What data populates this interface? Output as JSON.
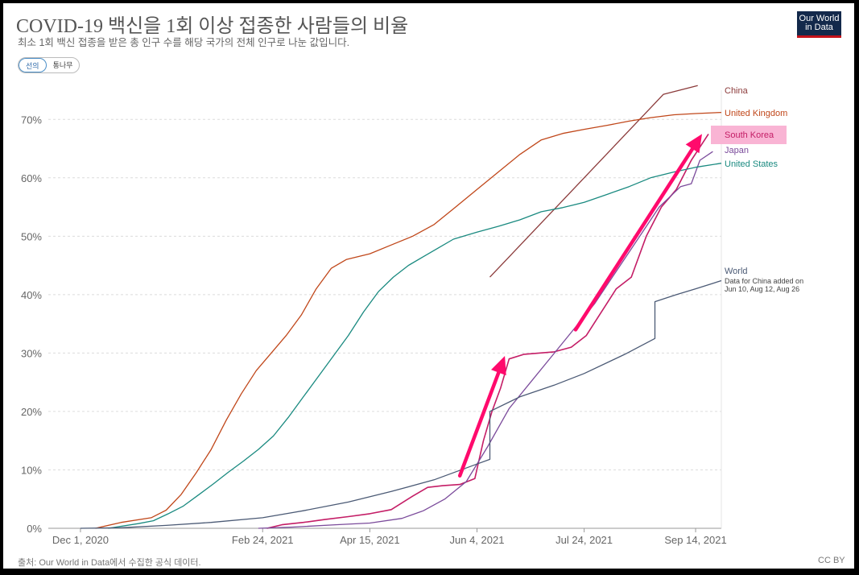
{
  "header": {
    "title": "COVID-19 백신을 1회 이상 접종한 사람들의 비율",
    "subtitle": "최소 1회 백신 접종을 받은 총 인구 수를 해당 국가의 전체 인구로 나눈 값입니다.",
    "logo_line1": "Our World",
    "logo_line2": "in Data"
  },
  "toggle": {
    "options": [
      "선의",
      "통나무"
    ],
    "active": 0
  },
  "footer": {
    "source": "출처: Our World in Data에서 수집한 공식 데이터.",
    "license": "CC BY"
  },
  "colors": {
    "grid": "#dcdcdc",
    "axis": "#999999",
    "arrow": "#ff0a6c",
    "highlight": "#f9b4d4"
  },
  "chart_data": {
    "type": "line",
    "title": "COVID-19 백신을 1회 이상 접종한 사람들의 비율",
    "x_ticks": [
      "Dec 1, 2020",
      "Feb 24, 2021",
      "Apr 15, 2021",
      "Jun 4, 2021",
      "Jul 24, 2021",
      "Sep 14, 2021"
    ],
    "x_range": [
      "2020-11-16",
      "2021-09-26"
    ],
    "y_ticks": [
      "0%",
      "10%",
      "20%",
      "30%",
      "40%",
      "50%",
      "60%",
      "70%"
    ],
    "ylim": [
      0,
      75
    ],
    "grid": true,
    "legend": "right-end-labels",
    "series": [
      {
        "name": "China",
        "color": "#8b3a3a",
        "points": [
          [
            "2021-06-10",
            43
          ],
          [
            "2021-08-30",
            74.3
          ],
          [
            "2021-09-15",
            75.8
          ]
        ]
      },
      {
        "name": "United Kingdom",
        "color": "#c0471a",
        "points": [
          [
            "2020-12-08",
            0
          ],
          [
            "2020-12-20",
            1
          ],
          [
            "2021-01-03",
            1.8
          ],
          [
            "2021-01-10",
            3.1
          ],
          [
            "2021-01-17",
            5.8
          ],
          [
            "2021-01-24",
            9.5
          ],
          [
            "2021-01-31",
            13.5
          ],
          [
            "2021-02-07",
            18.5
          ],
          [
            "2021-02-14",
            23
          ],
          [
            "2021-02-21",
            27
          ],
          [
            "2021-02-28",
            30
          ],
          [
            "2021-03-07",
            33
          ],
          [
            "2021-03-14",
            36.5
          ],
          [
            "2021-03-21",
            41
          ],
          [
            "2021-03-28",
            44.5
          ],
          [
            "2021-04-04",
            46
          ],
          [
            "2021-04-15",
            47
          ],
          [
            "2021-04-25",
            48.5
          ],
          [
            "2021-05-05",
            50
          ],
          [
            "2021-05-15",
            52
          ],
          [
            "2021-05-25",
            55
          ],
          [
            "2021-06-04",
            58
          ],
          [
            "2021-06-14",
            61
          ],
          [
            "2021-06-24",
            64
          ],
          [
            "2021-07-04",
            66.5
          ],
          [
            "2021-07-14",
            67.6
          ],
          [
            "2021-07-24",
            68.3
          ],
          [
            "2021-08-04",
            69
          ],
          [
            "2021-08-14",
            69.7
          ],
          [
            "2021-08-24",
            70.3
          ],
          [
            "2021-09-04",
            70.8
          ],
          [
            "2021-09-14",
            71
          ],
          [
            "2021-09-26",
            71.2
          ]
        ]
      },
      {
        "name": "South Korea",
        "color": "#c41d66",
        "points": [
          [
            "2021-02-26",
            0
          ],
          [
            "2021-03-05",
            0.6
          ],
          [
            "2021-03-15",
            1
          ],
          [
            "2021-03-25",
            1.5
          ],
          [
            "2021-04-05",
            2
          ],
          [
            "2021-04-15",
            2.5
          ],
          [
            "2021-04-25",
            3.2
          ],
          [
            "2021-05-05",
            5.5
          ],
          [
            "2021-05-12",
            7
          ],
          [
            "2021-05-19",
            7.3
          ],
          [
            "2021-05-27",
            7.5
          ],
          [
            "2021-06-03",
            8.5
          ],
          [
            "2021-06-07",
            15
          ],
          [
            "2021-06-11",
            20
          ],
          [
            "2021-06-15",
            24
          ],
          [
            "2021-06-19",
            29
          ],
          [
            "2021-06-26",
            29.8
          ],
          [
            "2021-07-10",
            30.2
          ],
          [
            "2021-07-18",
            31
          ],
          [
            "2021-07-25",
            33
          ],
          [
            "2021-08-01",
            37
          ],
          [
            "2021-08-08",
            41
          ],
          [
            "2021-08-15",
            43
          ],
          [
            "2021-08-22",
            50
          ],
          [
            "2021-08-29",
            55
          ],
          [
            "2021-09-05",
            58
          ],
          [
            "2021-09-12",
            63
          ],
          [
            "2021-09-20",
            67.5
          ]
        ]
      },
      {
        "name": "Japan",
        "color": "#7b4b9b",
        "points": [
          [
            "2021-02-22",
            0
          ],
          [
            "2021-03-10",
            0.2
          ],
          [
            "2021-03-30",
            0.6
          ],
          [
            "2021-04-15",
            0.9
          ],
          [
            "2021-04-30",
            1.7
          ],
          [
            "2021-05-10",
            3
          ],
          [
            "2021-05-20",
            5
          ],
          [
            "2021-05-30",
            8
          ],
          [
            "2021-06-09",
            14
          ],
          [
            "2021-06-19",
            20.5
          ],
          [
            "2021-06-29",
            25
          ],
          [
            "2021-07-09",
            29.5
          ],
          [
            "2021-07-19",
            34
          ],
          [
            "2021-07-29",
            38.5
          ],
          [
            "2021-08-08",
            44
          ],
          [
            "2021-08-18",
            49.5
          ],
          [
            "2021-08-28",
            55
          ],
          [
            "2021-09-07",
            58.5
          ],
          [
            "2021-09-12",
            59
          ],
          [
            "2021-09-16",
            63
          ],
          [
            "2021-09-22",
            64.5
          ]
        ]
      },
      {
        "name": "United States",
        "color": "#1a8a80",
        "points": [
          [
            "2020-12-14",
            0
          ],
          [
            "2020-12-28",
            0.8
          ],
          [
            "2021-01-04",
            1.3
          ],
          [
            "2021-01-11",
            2.5
          ],
          [
            "2021-01-18",
            3.8
          ],
          [
            "2021-01-25",
            5.7
          ],
          [
            "2021-02-01",
            7.6
          ],
          [
            "2021-02-08",
            9.6
          ],
          [
            "2021-02-15",
            11.5
          ],
          [
            "2021-02-22",
            13.5
          ],
          [
            "2021-03-01",
            15.8
          ],
          [
            "2021-03-08",
            19
          ],
          [
            "2021-03-15",
            22.5
          ],
          [
            "2021-03-22",
            26
          ],
          [
            "2021-03-29",
            29.5
          ],
          [
            "2021-04-05",
            33
          ],
          [
            "2021-04-12",
            37
          ],
          [
            "2021-04-19",
            40.5
          ],
          [
            "2021-04-26",
            43
          ],
          [
            "2021-05-03",
            45
          ],
          [
            "2021-05-10",
            46.5
          ],
          [
            "2021-05-17",
            48
          ],
          [
            "2021-05-24",
            49.5
          ],
          [
            "2021-06-04",
            50.7
          ],
          [
            "2021-06-14",
            51.7
          ],
          [
            "2021-06-24",
            52.8
          ],
          [
            "2021-07-04",
            54.2
          ],
          [
            "2021-07-14",
            54.9
          ],
          [
            "2021-07-24",
            55.8
          ],
          [
            "2021-08-04",
            57.2
          ],
          [
            "2021-08-14",
            58.5
          ],
          [
            "2021-08-24",
            60
          ],
          [
            "2021-09-04",
            61
          ],
          [
            "2021-09-14",
            61.8
          ],
          [
            "2021-09-26",
            62.5
          ]
        ]
      },
      {
        "name": "World",
        "note": "Data for China added on Jun 10, Aug 12, Aug 26",
        "color": "#4b5a75",
        "points": [
          [
            "2020-12-01",
            0
          ],
          [
            "2020-12-20",
            0.1
          ],
          [
            "2021-01-10",
            0.5
          ],
          [
            "2021-01-31",
            1
          ],
          [
            "2021-02-24",
            1.8
          ],
          [
            "2021-03-15",
            3
          ],
          [
            "2021-04-05",
            4.5
          ],
          [
            "2021-04-25",
            6.3
          ],
          [
            "2021-05-15",
            8.3
          ],
          [
            "2021-06-04",
            11
          ],
          [
            "2021-06-10",
            11.8
          ],
          [
            "2021-06-10",
            20
          ],
          [
            "2021-06-24",
            22.5
          ],
          [
            "2021-07-10",
            24.5
          ],
          [
            "2021-07-24",
            26.5
          ],
          [
            "2021-08-12",
            29.8
          ],
          [
            "2021-08-26",
            32.5
          ],
          [
            "2021-08-26",
            38.8
          ],
          [
            "2021-09-05",
            40
          ],
          [
            "2021-09-14",
            41
          ],
          [
            "2021-09-26",
            42.4
          ]
        ]
      }
    ],
    "annotations": [
      {
        "type": "arrow",
        "from": [
          "2021-05-27",
          9
        ],
        "to": [
          "2021-06-17",
          29.5
        ]
      },
      {
        "type": "arrow",
        "from": [
          "2021-07-20",
          34
        ],
        "to": [
          "2021-09-17",
          67.5
        ]
      }
    ],
    "highlight": "South Korea"
  }
}
